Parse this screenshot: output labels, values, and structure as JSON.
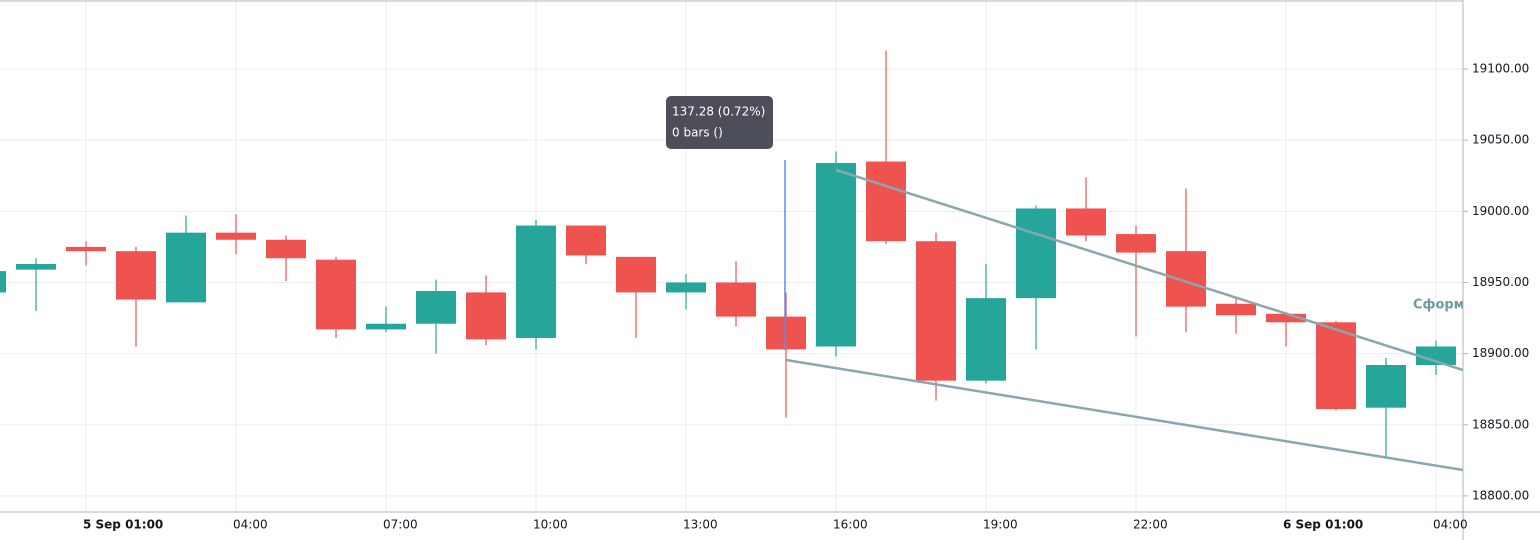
{
  "chart_data": {
    "type": "candlestick",
    "categories": [
      null,
      null,
      "5 Sep 01:00",
      null,
      null,
      "04:00",
      null,
      null,
      "07:00",
      null,
      null,
      "10:00",
      null,
      null,
      "13:00",
      null,
      null,
      "16:00",
      null,
      null,
      "19:00",
      null,
      null,
      "22:00",
      null,
      null,
      "6 Sep 01:00",
      null,
      null,
      "04:00"
    ],
    "open": [
      18943,
      18959,
      18975,
      18972,
      18936,
      18985,
      18980,
      18966,
      18917,
      18921,
      18943,
      18911,
      18990,
      18968,
      18943,
      18950,
      18926,
      18905,
      19035,
      18979,
      18881,
      18939,
      19002,
      18984,
      18972,
      18935,
      18928,
      18922,
      18862,
      18892
    ],
    "high": [
      18958,
      18967,
      18979,
      18975,
      18997,
      18998,
      18983,
      18968,
      18933,
      18952,
      18955,
      18994,
      18990,
      18968,
      18956,
      18965,
      18943,
      19042,
      19113,
      18985,
      18963,
      19004,
      19024,
      18990,
      19016,
      18939,
      18929,
      18923,
      18897,
      18909
    ],
    "low": [
      18943,
      18930,
      18962,
      18905,
      18936,
      18970,
      18951,
      18911,
      18915,
      18900,
      18906,
      18903,
      18963,
      18911,
      18931,
      18919,
      18855,
      18898,
      18977,
      18867,
      18879,
      18903,
      18979,
      18912,
      18915,
      18914,
      18905,
      18860,
      18827,
      18885
    ],
    "close": [
      18958,
      18963,
      18972,
      18938,
      18985,
      18980,
      18967,
      18917,
      18921,
      18944,
      18910,
      18990,
      18969,
      18943,
      18950,
      18926,
      18903,
      19034,
      18979,
      18881,
      18939,
      19002,
      18983,
      18971,
      18933,
      18927,
      18922,
      18861,
      18892,
      18905
    ],
    "up_color": "#26a69a",
    "down_color": "#ef5350",
    "ylim": [
      18788.7,
      19148.5
    ],
    "yticks": [
      {
        "value": 18800,
        "label": "18800.00"
      },
      {
        "value": 18850,
        "label": "18850.00"
      },
      {
        "value": 18900,
        "label": "18900.00"
      },
      {
        "value": 18950,
        "label": "18950.00"
      },
      {
        "value": 19000,
        "label": "19000.00"
      },
      {
        "value": 19050,
        "label": "19050.00"
      },
      {
        "value": 19100,
        "label": "19100.00"
      }
    ],
    "grid": true,
    "annotations": {
      "measure_value": "137.28 (0.72%)",
      "measure_bars": "0 bars ()",
      "line_label": "Сформ"
    }
  }
}
